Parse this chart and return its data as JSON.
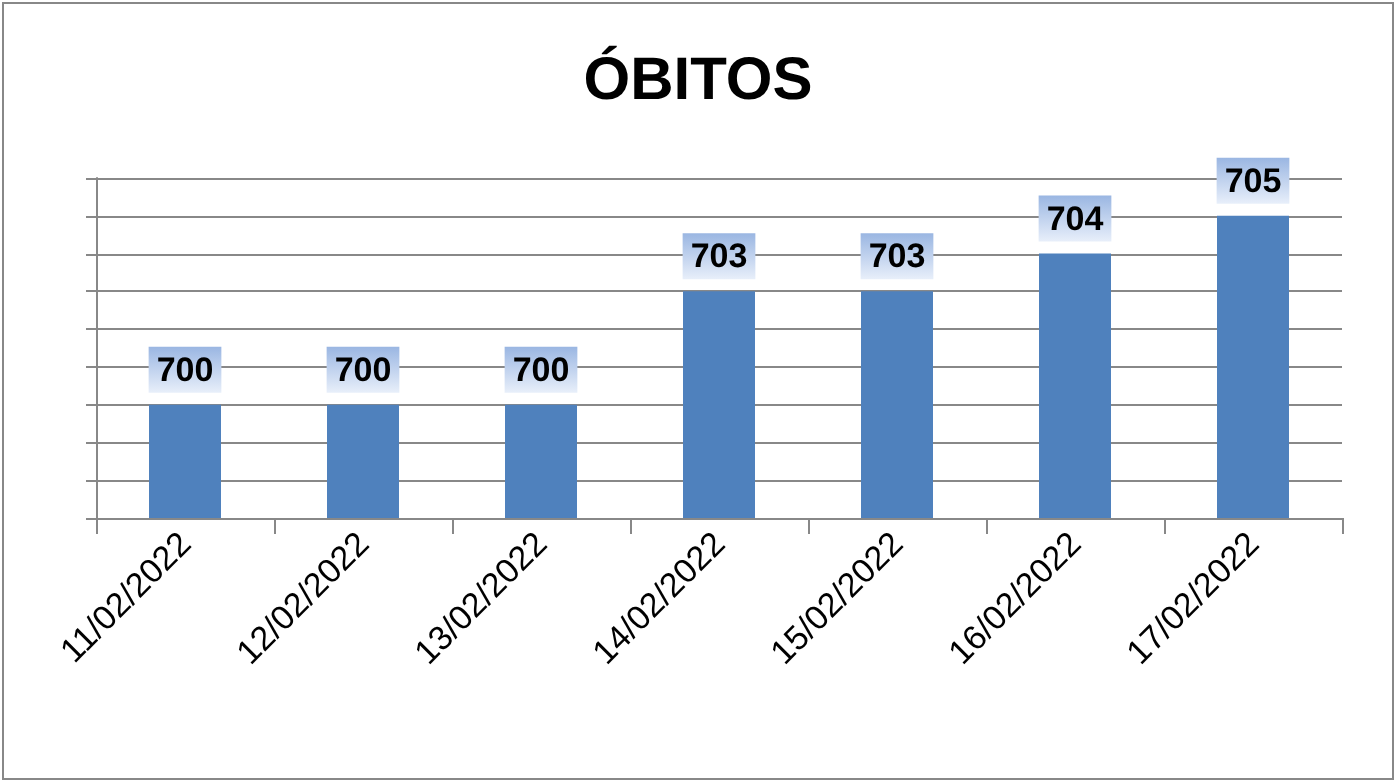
{
  "chart_data": {
    "type": "bar",
    "title": "ÓBITOS",
    "categories": [
      "11/02/2022",
      "12/02/2022",
      "13/02/2022",
      "14/02/2022",
      "15/02/2022",
      "16/02/2022",
      "17/02/2022"
    ],
    "values": [
      700,
      700,
      700,
      703,
      703,
      704,
      705
    ],
    "color": "#4f81bd",
    "ylim": [
      697,
      706
    ],
    "yticks": [
      {
        "value": 697,
        "label": null
      },
      {
        "value": 698,
        "label": null
      },
      {
        "value": 699,
        "label": null
      },
      {
        "value": 700,
        "label": null
      },
      {
        "value": 701,
        "label": null
      },
      {
        "value": 702,
        "label": null
      },
      {
        "value": 703,
        "label": null
      },
      {
        "value": 704,
        "label": null
      },
      {
        "value": 705,
        "label": null
      },
      {
        "value": 706,
        "label": null
      }
    ],
    "tick_labels": "x",
    "grid": "y",
    "data_labels": true
  }
}
